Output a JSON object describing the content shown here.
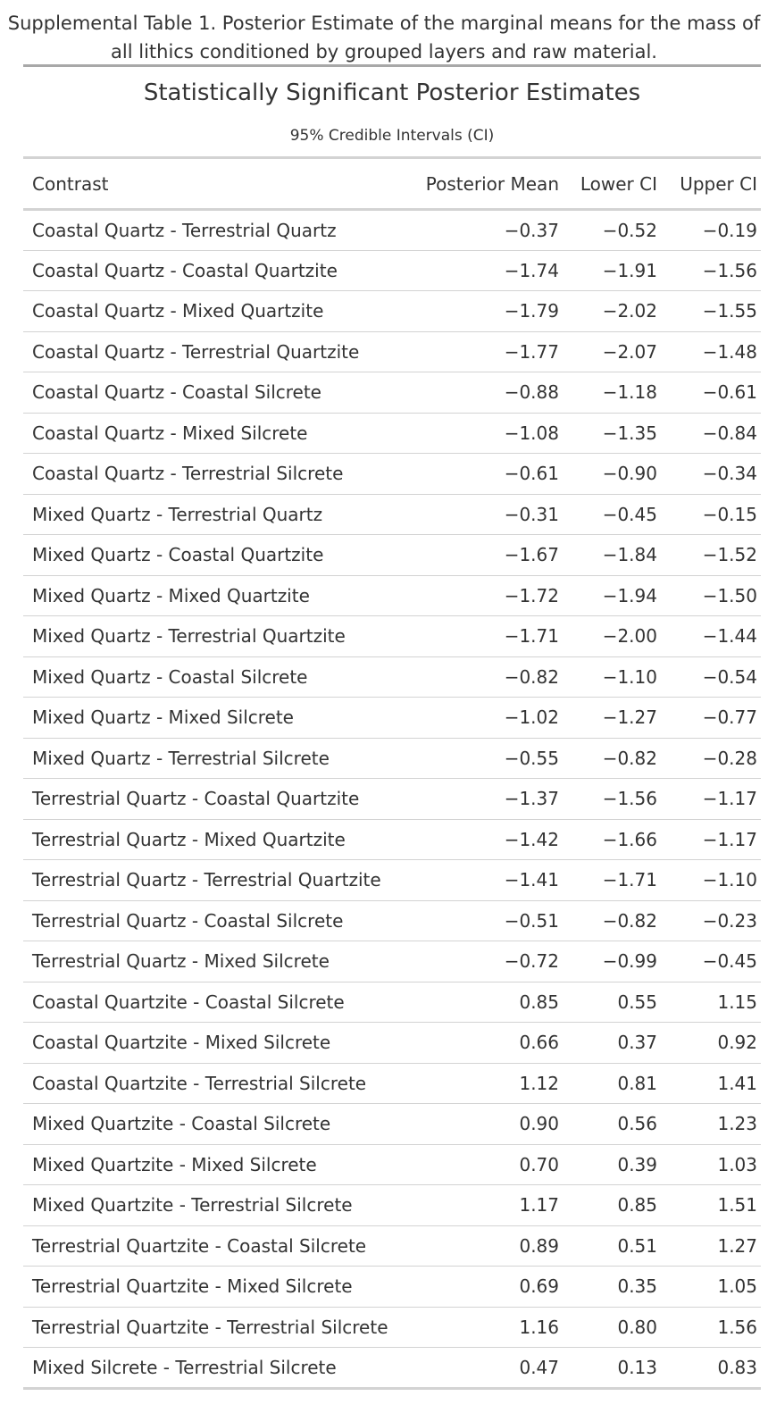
{
  "caption": {
    "line1": "Supplemental Table 1. Posterior Estimate of the marginal means for the mass of",
    "line2": "all lithics conditioned by grouped layers and raw material."
  },
  "table": {
    "title": "Statistically Significant Posterior Estimates",
    "subtitle": "95% Credible Intervals (CI)",
    "columns": [
      "Contrast",
      "Posterior Mean",
      "Lower CI",
      "Upper CI"
    ],
    "rows": [
      [
        "Coastal Quartz - Terrestrial Quartz",
        "−0.37",
        "−0.52",
        "−0.19"
      ],
      [
        "Coastal Quartz - Coastal Quartzite",
        "−1.74",
        "−1.91",
        "−1.56"
      ],
      [
        "Coastal Quartz - Mixed Quartzite",
        "−1.79",
        "−2.02",
        "−1.55"
      ],
      [
        "Coastal Quartz - Terrestrial Quartzite",
        "−1.77",
        "−2.07",
        "−1.48"
      ],
      [
        "Coastal Quartz - Coastal Silcrete",
        "−0.88",
        "−1.18",
        "−0.61"
      ],
      [
        "Coastal Quartz - Mixed Silcrete",
        "−1.08",
        "−1.35",
        "−0.84"
      ],
      [
        "Coastal Quartz - Terrestrial Silcrete",
        "−0.61",
        "−0.90",
        "−0.34"
      ],
      [
        "Mixed Quartz - Terrestrial Quartz",
        "−0.31",
        "−0.45",
        "−0.15"
      ],
      [
        "Mixed Quartz - Coastal Quartzite",
        "−1.67",
        "−1.84",
        "−1.52"
      ],
      [
        "Mixed Quartz - Mixed Quartzite",
        "−1.72",
        "−1.94",
        "−1.50"
      ],
      [
        "Mixed Quartz - Terrestrial Quartzite",
        "−1.71",
        "−2.00",
        "−1.44"
      ],
      [
        "Mixed Quartz - Coastal Silcrete",
        "−0.82",
        "−1.10",
        "−0.54"
      ],
      [
        "Mixed Quartz - Mixed Silcrete",
        "−1.02",
        "−1.27",
        "−0.77"
      ],
      [
        "Mixed Quartz - Terrestrial Silcrete",
        "−0.55",
        "−0.82",
        "−0.28"
      ],
      [
        "Terrestrial Quartz - Coastal Quartzite",
        "−1.37",
        "−1.56",
        "−1.17"
      ],
      [
        "Terrestrial Quartz - Mixed Quartzite",
        "−1.42",
        "−1.66",
        "−1.17"
      ],
      [
        "Terrestrial Quartz - Terrestrial Quartzite",
        "−1.41",
        "−1.71",
        "−1.10"
      ],
      [
        "Terrestrial Quartz - Coastal Silcrete",
        "−0.51",
        "−0.82",
        "−0.23"
      ],
      [
        "Terrestrial Quartz - Mixed Silcrete",
        "−0.72",
        "−0.99",
        "−0.45"
      ],
      [
        "Coastal Quartzite - Coastal Silcrete",
        "0.85",
        "0.55",
        "1.15"
      ],
      [
        "Coastal Quartzite - Mixed Silcrete",
        "0.66",
        "0.37",
        "0.92"
      ],
      [
        "Coastal Quartzite - Terrestrial Silcrete",
        "1.12",
        "0.81",
        "1.41"
      ],
      [
        "Mixed Quartzite - Coastal Silcrete",
        "0.90",
        "0.56",
        "1.23"
      ],
      [
        "Mixed Quartzite - Mixed Silcrete",
        "0.70",
        "0.39",
        "1.03"
      ],
      [
        "Mixed Quartzite - Terrestrial Silcrete",
        "1.17",
        "0.85",
        "1.51"
      ],
      [
        "Terrestrial Quartzite - Coastal Silcrete",
        "0.89",
        "0.51",
        "1.27"
      ],
      [
        "Terrestrial Quartzite - Mixed Silcrete",
        "0.69",
        "0.35",
        "1.05"
      ],
      [
        "Terrestrial Quartzite - Terrestrial Silcrete",
        "1.16",
        "0.80",
        "1.56"
      ],
      [
        "Mixed Silcrete - Terrestrial Silcrete",
        "0.47",
        "0.13",
        "0.83"
      ]
    ]
  }
}
